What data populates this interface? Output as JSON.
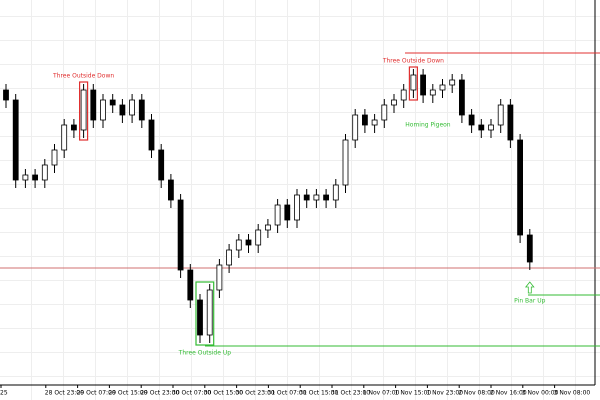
{
  "chart_data": {
    "type": "candlestick",
    "x_labels": [
      "25",
      "28 Oct 23:00",
      "29 Oct 07:00",
      "29 Oct 15:00",
      "29 Oct 23:00",
      "30 Oct 07:00",
      "30 Oct 15:00",
      "30 Oct 23:00",
      "31 Oct 07:00",
      "31 Oct 15:00",
      "31 Oct 23:00",
      "1 Nov 07:00",
      "1 Nov 15:00",
      "1 Nov 23:00",
      "2 Nov 08:00",
      "2 Nov 16:00",
      "3 Nov 00:00",
      "3 Nov 08:00"
    ],
    "open": [
      310,
      300,
      220,
      225,
      220,
      235,
      250,
      275,
      270,
      310,
      280,
      300,
      295,
      285,
      300,
      280,
      250,
      220,
      200,
      130,
      100,
      65,
      110,
      135,
      150,
      160,
      155,
      170,
      175,
      195,
      180,
      205,
      200,
      205,
      200,
      215,
      260,
      285,
      275,
      280,
      295,
      300,
      310,
      325,
      305,
      310,
      315,
      320,
      285,
      275,
      270,
      275,
      295,
      260,
      165
    ],
    "high": [
      316,
      306,
      231,
      231,
      241,
      256,
      281,
      281,
      316,
      316,
      306,
      306,
      301,
      306,
      306,
      286,
      256,
      226,
      206,
      136,
      106,
      116,
      141,
      156,
      166,
      166,
      176,
      181,
      201,
      201,
      211,
      211,
      211,
      211,
      221,
      266,
      291,
      291,
      286,
      301,
      306,
      316,
      331,
      331,
      316,
      321,
      326,
      326,
      291,
      281,
      281,
      301,
      301,
      266,
      171
    ],
    "low": [
      292,
      212,
      212,
      212,
      212,
      227,
      242,
      262,
      262,
      272,
      272,
      287,
      277,
      277,
      272,
      242,
      212,
      192,
      122,
      92,
      57,
      57,
      102,
      127,
      142,
      147,
      147,
      162,
      167,
      172,
      172,
      192,
      192,
      192,
      192,
      207,
      252,
      267,
      267,
      272,
      287,
      292,
      302,
      297,
      297,
      302,
      307,
      277,
      267,
      262,
      262,
      267,
      252,
      157,
      130
    ],
    "close": [
      300,
      220,
      225,
      220,
      235,
      250,
      275,
      270,
      310,
      280,
      300,
      295,
      285,
      300,
      280,
      250,
      220,
      200,
      130,
      100,
      65,
      110,
      135,
      150,
      160,
      155,
      170,
      175,
      195,
      180,
      205,
      200,
      205,
      200,
      215,
      260,
      285,
      275,
      280,
      295,
      300,
      310,
      325,
      305,
      310,
      315,
      320,
      285,
      275,
      270,
      275,
      295,
      260,
      165,
      138
    ],
    "ylim": [
      15,
      400
    ],
    "levels": [
      {
        "value": 347,
        "color": "#e03030"
      },
      {
        "value": 132,
        "color": "#d07070"
      },
      {
        "value": 105,
        "color": "#33bb33"
      },
      {
        "value": 54,
        "color": "#33bb33"
      }
    ],
    "annotations": [
      {
        "text": "Three Outside Down",
        "color": "#e03030"
      },
      {
        "text": "Three Outside Down",
        "color": "#e03030"
      },
      {
        "text": "Three Outside Up",
        "color": "#33bb33"
      },
      {
        "text": "Homing Pigeon",
        "color": "#33bb33"
      },
      {
        "text": "Pin Bar Up",
        "color": "#33bb33"
      }
    ]
  }
}
